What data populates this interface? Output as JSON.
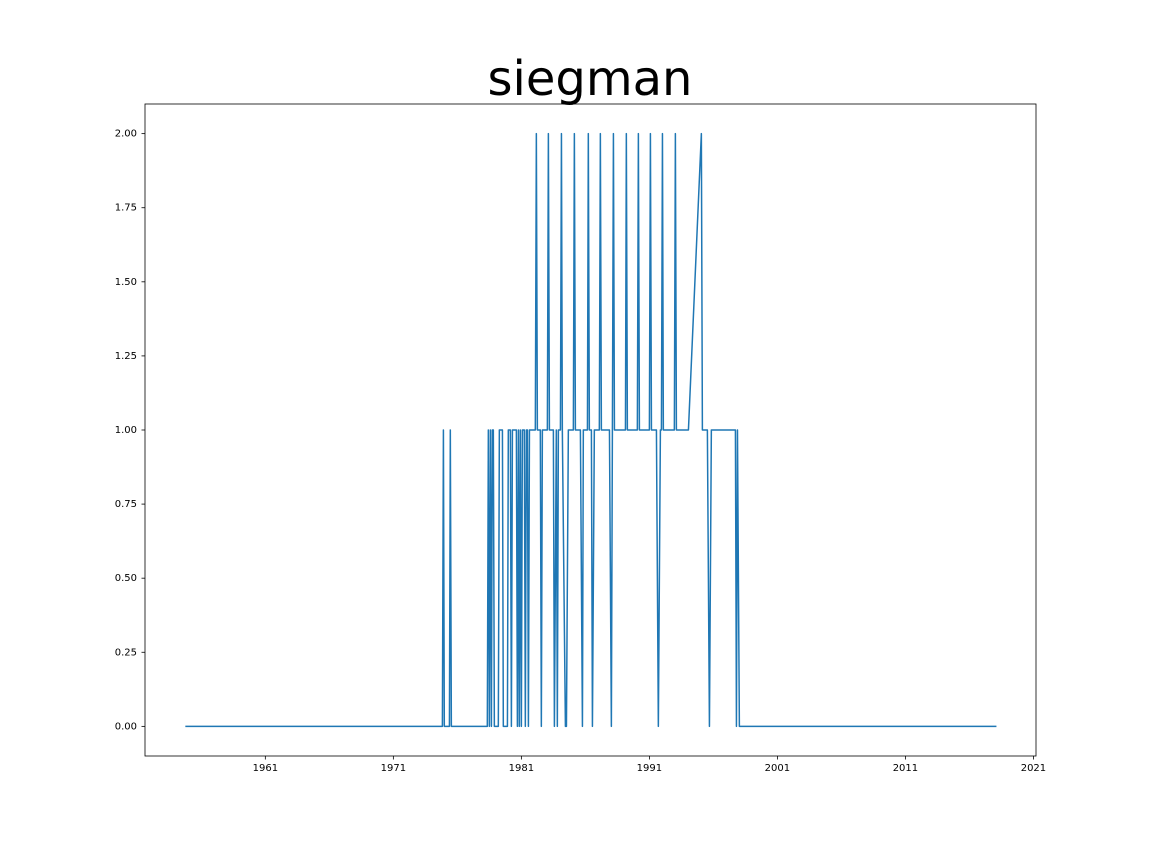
{
  "chart_data": {
    "type": "line",
    "title": "siegman",
    "x": [
      1954.75,
      1974.83,
      1974.91,
      1974.98,
      1975.38,
      1975.45,
      1975.53,
      1978.34,
      1978.42,
      1978.5,
      1978.58,
      1978.66,
      1978.73,
      1978.81,
      1978.89,
      1979.2,
      1979.28,
      1979.52,
      1979.59,
      1979.91,
      1979.98,
      1980.14,
      1980.22,
      1980.3,
      1980.61,
      1980.69,
      1980.77,
      1980.84,
      1980.92,
      1981.0,
      1981.08,
      1981.23,
      1981.31,
      1981.39,
      1981.47,
      1981.55,
      1981.63,
      1982.09,
      1982.17,
      1982.25,
      1982.48,
      1982.56,
      1982.64,
      1983.03,
      1983.11,
      1983.19,
      1983.5,
      1983.58,
      1983.73,
      1983.81,
      1983.89,
      1984.05,
      1984.13,
      1984.2,
      1984.44,
      1984.52,
      1984.67,
      1985.06,
      1985.14,
      1985.22,
      1985.61,
      1985.77,
      1985.84,
      1986.16,
      1986.23,
      1986.31,
      1986.47,
      1986.55,
      1986.7,
      1987.09,
      1987.17,
      1987.25,
      1987.88,
      1988.03,
      1988.11,
      1988.19,
      1988.27,
      1989.13,
      1989.2,
      1989.28,
      1990.06,
      1990.14,
      1990.22,
      1991.0,
      1991.08,
      1991.16,
      1991.55,
      1991.7,
      1991.86,
      1991.94,
      1992.02,
      1992.09,
      1992.95,
      1993.03,
      1993.11,
      1993.97,
      1994.05,
      1995.06,
      1995.14,
      1995.53,
      1995.69,
      1995.84,
      1997.72,
      1997.8,
      1997.88,
      1998.03,
      2018.11
    ],
    "values": [
      0,
      0,
      1,
      0,
      0,
      1,
      0,
      0,
      1,
      0,
      1,
      0,
      1,
      1,
      0,
      0,
      1,
      1,
      0,
      0,
      1,
      1,
      0,
      1,
      1,
      0,
      1,
      0,
      1,
      0,
      1,
      1,
      0,
      1,
      1,
      0,
      1,
      1,
      2,
      1,
      1,
      0,
      1,
      1,
      2,
      1,
      1,
      0,
      1,
      0,
      1,
      1,
      2,
      1,
      0,
      0,
      1,
      1,
      2,
      1,
      1,
      0,
      1,
      1,
      2,
      1,
      1,
      0,
      1,
      1,
      2,
      1,
      1,
      0,
      1,
      2,
      1,
      1,
      2,
      1,
      1,
      2,
      1,
      1,
      2,
      1,
      1,
      0,
      1,
      1,
      2,
      1,
      1,
      2,
      1,
      1,
      1,
      2,
      1,
      1,
      0,
      1,
      1,
      0,
      1,
      0,
      0
    ],
    "color": "#1f77b4",
    "xlim": [
      1951.6,
      2021.2
    ],
    "xticks": [
      1961,
      1971,
      1981,
      1991,
      2001,
      2011,
      2021
    ],
    "ylim": [
      -0.1,
      2.1
    ],
    "yticks": [
      {
        "value": 0,
        "label": "0.00"
      },
      {
        "value": 0.25,
        "label": "0.25"
      },
      {
        "value": 0.5,
        "label": "0.50"
      },
      {
        "value": 0.75,
        "label": "0.75"
      },
      {
        "value": 1,
        "label": "1.00"
      },
      {
        "value": 1.25,
        "label": "1.25"
      },
      {
        "value": 1.5,
        "label": "1.50"
      },
      {
        "value": 1.75,
        "label": "1.75"
      },
      {
        "value": 2,
        "label": "2.00"
      }
    ],
    "grid": false
  }
}
